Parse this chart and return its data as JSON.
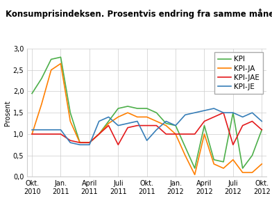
{
  "title": "Konsumprisindeksen. Prosentvis endring fra samme måned året før",
  "ylabel": "Prosent",
  "background_color": "#ffffff",
  "grid_color": "#cccccc",
  "yticks": [
    0.0,
    0.5,
    1.0,
    1.5,
    2.0,
    2.5,
    3.0
  ],
  "ylim": [
    0.0,
    3.0
  ],
  "tick_positions": [
    0,
    3,
    6,
    9,
    12,
    15,
    18,
    21,
    24
  ],
  "tick_labels": [
    "Okt.\n2010",
    "Jan.\n2011",
    "April\n2011",
    "Juli\n2011",
    "Okt.\n2011",
    "Jan.\n2012",
    "April\n2012",
    "Juli\n2012",
    "Okt.\n2012"
  ],
  "legend_order": [
    "KPI",
    "KPI-JA",
    "KPI-JAE",
    "KPI-JE"
  ],
  "series": {
    "KPI": {
      "color": "#4daf4a",
      "values": [
        1.95,
        2.3,
        2.75,
        2.8,
        1.5,
        0.8,
        0.8,
        1.0,
        1.3,
        1.6,
        1.65,
        1.6,
        1.6,
        1.5,
        1.25,
        1.2,
        0.7,
        0.2,
        1.2,
        0.4,
        0.35,
        1.5,
        0.2,
        0.5,
        1.1
      ]
    },
    "KPI-JA": {
      "color": "#ff7f00",
      "values": [
        1.0,
        1.7,
        2.5,
        2.65,
        1.3,
        0.8,
        0.8,
        1.0,
        1.25,
        1.4,
        1.5,
        1.4,
        1.4,
        1.3,
        1.2,
        1.0,
        0.5,
        0.05,
        1.0,
        0.3,
        0.2,
        0.4,
        0.1,
        0.1,
        0.3
      ]
    },
    "KPI-JAE": {
      "color": "#e41a1c",
      "values": [
        1.0,
        1.0,
        1.0,
        1.0,
        0.85,
        0.8,
        0.8,
        1.0,
        1.2,
        0.75,
        1.15,
        1.2,
        1.2,
        1.2,
        1.0,
        1.0,
        1.0,
        1.0,
        1.3,
        1.4,
        1.5,
        0.75,
        1.2,
        1.3,
        1.1
      ]
    },
    "KPI-JE": {
      "color": "#377eb8",
      "values": [
        1.1,
        1.1,
        1.1,
        1.1,
        0.8,
        0.75,
        0.75,
        1.3,
        1.4,
        1.2,
        1.25,
        1.3,
        0.85,
        1.1,
        1.3,
        1.2,
        1.45,
        1.5,
        1.55,
        1.6,
        1.5,
        1.5,
        1.4,
        1.5,
        1.3
      ]
    }
  },
  "title_fontsize": 8.5,
  "axis_fontsize": 7,
  "legend_fontsize": 7.5,
  "linewidth": 1.2
}
